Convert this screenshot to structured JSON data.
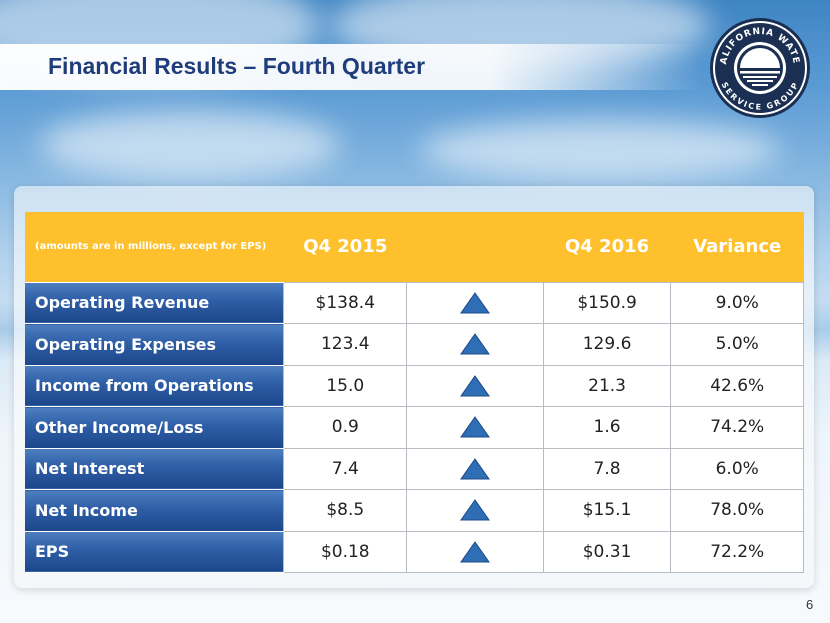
{
  "slide": {
    "title": "Financial Results – Fourth Quarter",
    "page_number": "6"
  },
  "logo": {
    "top_text": "CALIFORNIA WATER",
    "bottom_text": "SERVICE GROUP"
  },
  "table": {
    "note": "(amounts are in millions, except for EPS)",
    "columns": [
      "Q4 2015",
      "",
      "Q4 2016",
      "Variance"
    ],
    "rows": [
      {
        "label": "Operating Revenue",
        "q4_2015": "$138.4",
        "q4_2016": "$150.9",
        "variance": "9.0%"
      },
      {
        "label": "Operating Expenses",
        "q4_2015": "123.4",
        "q4_2016": "129.6",
        "variance": "5.0%"
      },
      {
        "label": "Income from Operations",
        "q4_2015": "15.0",
        "q4_2016": "21.3",
        "variance": "42.6%"
      },
      {
        "label": "Other Income/Loss",
        "q4_2015": "0.9",
        "q4_2016": "1.6",
        "variance": "74.2%"
      },
      {
        "label": "Net Interest",
        "q4_2015": "7.4",
        "q4_2016": "7.8",
        "variance": "6.0%"
      },
      {
        "label": "Net Income",
        "q4_2015": "$8.5",
        "q4_2016": "$15.1",
        "variance": "78.0%"
      },
      {
        "label": "EPS",
        "q4_2015": "$0.18",
        "q4_2016": "$0.31",
        "variance": "72.2%"
      }
    ]
  },
  "colors": {
    "header_yellow": "#fec12d",
    "label_blue": "#2e5ea6",
    "title_navy": "#1f3d7a",
    "trend_up_blue": "#2f6db5"
  },
  "icons": {
    "trend": "up-triangle-icon"
  }
}
